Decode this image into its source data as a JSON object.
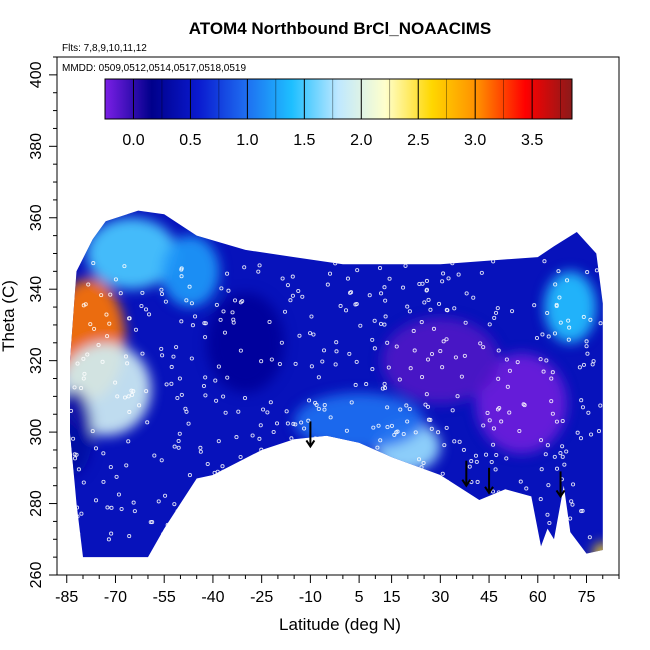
{
  "chart_data": {
    "type": "heatmap",
    "title": "ATOM4 Northbound BrCl_NOAACIMS",
    "subtitle_flights": "Flts: 7,8,9,10,11,12",
    "subtitle_dates": "MMDD: 0509,0512,0514,0517,0518,0519",
    "xlabel": "Latitude (deg N)",
    "ylabel": "Theta (C)",
    "xlim": [
      -88,
      85
    ],
    "ylim": [
      260,
      405
    ],
    "x_ticks": [
      -85,
      -70,
      -55,
      -40,
      -25,
      -10,
      5,
      15,
      30,
      45,
      60,
      75
    ],
    "y_ticks": [
      260,
      280,
      300,
      320,
      340,
      360,
      380,
      400
    ],
    "colorbar": {
      "range": [
        -0.25,
        3.85
      ],
      "ticks": [
        0.0,
        0.5,
        1.0,
        1.5,
        2.0,
        2.5,
        3.0,
        3.5
      ],
      "tick_labels": [
        "0.0",
        "0.5",
        "1.0",
        "1.5",
        "2.0",
        "2.5",
        "3.0",
        "3.5"
      ],
      "colors": [
        "#7b1fe6",
        "#00008b",
        "#0a1acf",
        "#1e6cf0",
        "#1ebfff",
        "#bfe8ff",
        "#ffffcc",
        "#ffd700",
        "#ff8c00",
        "#ff0000",
        "#8b1a1a"
      ]
    },
    "arrow_latitudes": [
      -10,
      38,
      45,
      67
    ],
    "upper_boundary": [
      [
        -82,
        345
      ],
      [
        -77,
        354
      ],
      [
        -73,
        359
      ],
      [
        -63,
        362
      ],
      [
        -55,
        361
      ],
      [
        -45,
        355
      ],
      [
        -30,
        351
      ],
      [
        -15,
        349
      ],
      [
        0,
        347
      ],
      [
        15,
        347
      ],
      [
        30,
        347
      ],
      [
        45,
        348
      ],
      [
        60,
        349
      ],
      [
        65,
        352
      ],
      [
        72,
        356
      ],
      [
        78,
        350
      ],
      [
        80,
        336
      ]
    ],
    "lower_boundary": [
      [
        80,
        267
      ],
      [
        75,
        266
      ],
      [
        70,
        272
      ],
      [
        68,
        285
      ],
      [
        65,
        270
      ],
      [
        63,
        273
      ],
      [
        61,
        268
      ],
      [
        58,
        282
      ],
      [
        50,
        284
      ],
      [
        42,
        281
      ],
      [
        30,
        288
      ],
      [
        15,
        293
      ],
      [
        5,
        297
      ],
      [
        -5,
        299
      ],
      [
        -15,
        298
      ],
      [
        -25,
        295
      ],
      [
        -40,
        288
      ],
      [
        -45,
        287
      ],
      [
        -55,
        273
      ],
      [
        -60,
        265
      ],
      [
        -80,
        265
      ],
      [
        -82,
        280
      ],
      [
        -84,
        300
      ],
      [
        -84,
        320
      ]
    ],
    "blobs": [
      {
        "lat": -78,
        "theta": 326,
        "value": 3.1,
        "rlat": 11,
        "rtheta": 17
      },
      {
        "lat": -73,
        "theta": 312,
        "value": 1.9,
        "rlat": 14,
        "rtheta": 13
      },
      {
        "lat": -65,
        "theta": 350,
        "value": 1.5,
        "rlat": 14,
        "rtheta": 10
      },
      {
        "lat": -47,
        "theta": 345,
        "value": 1.2,
        "rlat": 9,
        "rtheta": 10
      },
      {
        "lat": 20,
        "theta": 296,
        "value": 1.7,
        "rlat": 10,
        "rtheta": 7
      },
      {
        "lat": 5,
        "theta": 303,
        "value": 1.0,
        "rlat": 20,
        "rtheta": 8
      },
      {
        "lat": 70,
        "theta": 335,
        "value": 1.4,
        "rlat": 8,
        "rtheta": 10
      },
      {
        "lat": 55,
        "theta": 308,
        "value": -0.2,
        "rlat": 14,
        "rtheta": 14
      },
      {
        "lat": 30,
        "theta": 320,
        "value": -0.1,
        "rlat": 18,
        "rtheta": 12
      },
      {
        "lat": -30,
        "theta": 325,
        "value": 0.25,
        "rlat": 12,
        "rtheta": 14
      },
      {
        "lat": 80,
        "theta": 266,
        "value": 2.6,
        "rlat": 3,
        "rtheta": 3
      },
      {
        "lat": -83,
        "theta": 300,
        "value": 0.3,
        "rlat": 6,
        "rtheta": 12
      }
    ],
    "background_value": 0.45,
    "grid": false
  }
}
